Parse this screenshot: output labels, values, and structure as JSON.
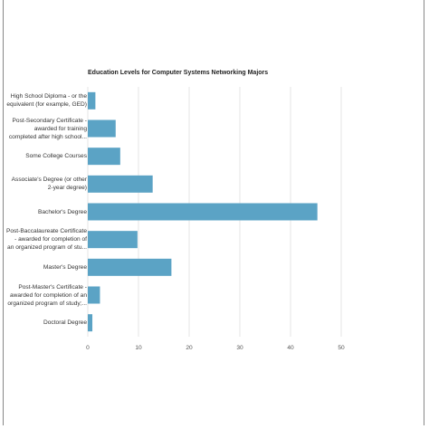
{
  "chart_data": {
    "type": "bar",
    "orientation": "horizontal",
    "title": "Education Levels for Computer Systems Networking Majors",
    "categories": [
      [
        "High School Diploma - or the",
        "equivalent (for example, GED)"
      ],
      [
        "Post-Secondary Certificate -",
        "awarded for training",
        "completed after high school..."
      ],
      [
        "Some College Courses"
      ],
      [
        "Associate's Degree (or other",
        "2-year degree)"
      ],
      [
        "Bachelor's Degree"
      ],
      [
        "Post-Baccalaureate Certificate",
        "- awarded for completion of",
        "an organized program of stu..."
      ],
      [
        "Master's Degree"
      ],
      [
        "Post-Master's Certificate -",
        "awarded for completion of an",
        "organized program of study;..."
      ],
      [
        "Doctoral Degree"
      ]
    ],
    "values": [
      1.5,
      5.5,
      6.4,
      12.8,
      45.3,
      9.8,
      16.5,
      2.4,
      0.9
    ],
    "xlim": [
      0,
      50
    ],
    "xticks": [
      0,
      10,
      20,
      30,
      40,
      50
    ],
    "grid": true,
    "bar_color": "#5ba3c5",
    "grid_color": "#e0e0e0"
  }
}
